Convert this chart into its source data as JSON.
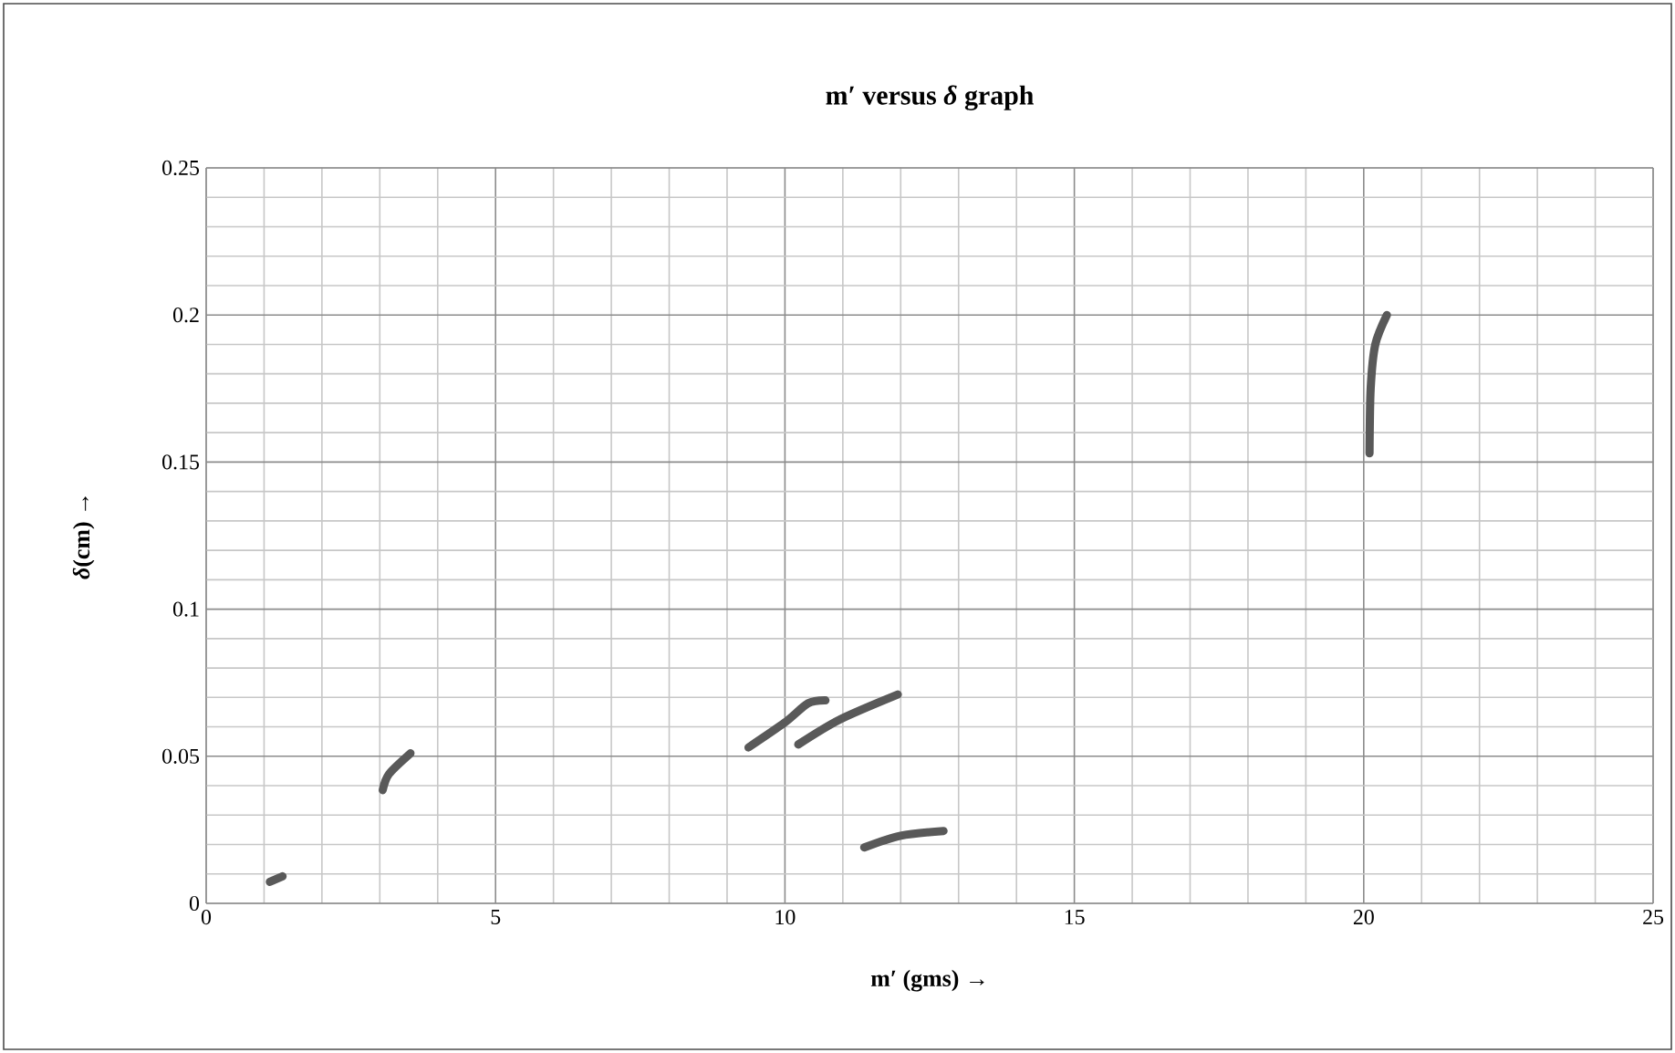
{
  "chart_data": {
    "type": "line",
    "title": "m′ versus *δ* graph",
    "xlabel": "m′ (gms) →",
    "ylabel": "*δ*(cm) →",
    "series": [
      {
        "color": "#595959",
        "x": [
          1.1,
          1.32
        ],
        "values": [
          0.0073,
          0.0092
        ]
      },
      {
        "color": "#595959",
        "x": [
          3.05,
          3.16,
          3.53
        ],
        "values": [
          0.0385,
          0.044,
          0.051
        ]
      },
      {
        "color": "#595959",
        "x": [
          9.37,
          10.0,
          10.4,
          10.7
        ],
        "values": [
          0.053,
          0.0615,
          0.068,
          0.069
        ]
      },
      {
        "color": "#595959",
        "x": [
          10.23,
          10.95,
          11.95
        ],
        "values": [
          0.054,
          0.0625,
          0.071
        ]
      },
      {
        "color": "#595959",
        "x": [
          11.37,
          12.0,
          12.74
        ],
        "values": [
          0.019,
          0.023,
          0.0246
        ]
      },
      {
        "color": "#595959",
        "x": [
          20.1,
          20.12,
          20.2,
          20.4
        ],
        "values": [
          0.153,
          0.175,
          0.19,
          0.2
        ]
      }
    ],
    "xlim": [
      0,
      25
    ],
    "xticks": [
      0,
      5,
      10,
      15,
      20,
      25
    ],
    "ylim": [
      0,
      0.25
    ],
    "yticks": [
      0,
      0.05,
      0.1,
      0.15,
      0.2,
      0.25
    ],
    "grid": true,
    "marker": "none",
    "line_style": "solid"
  }
}
